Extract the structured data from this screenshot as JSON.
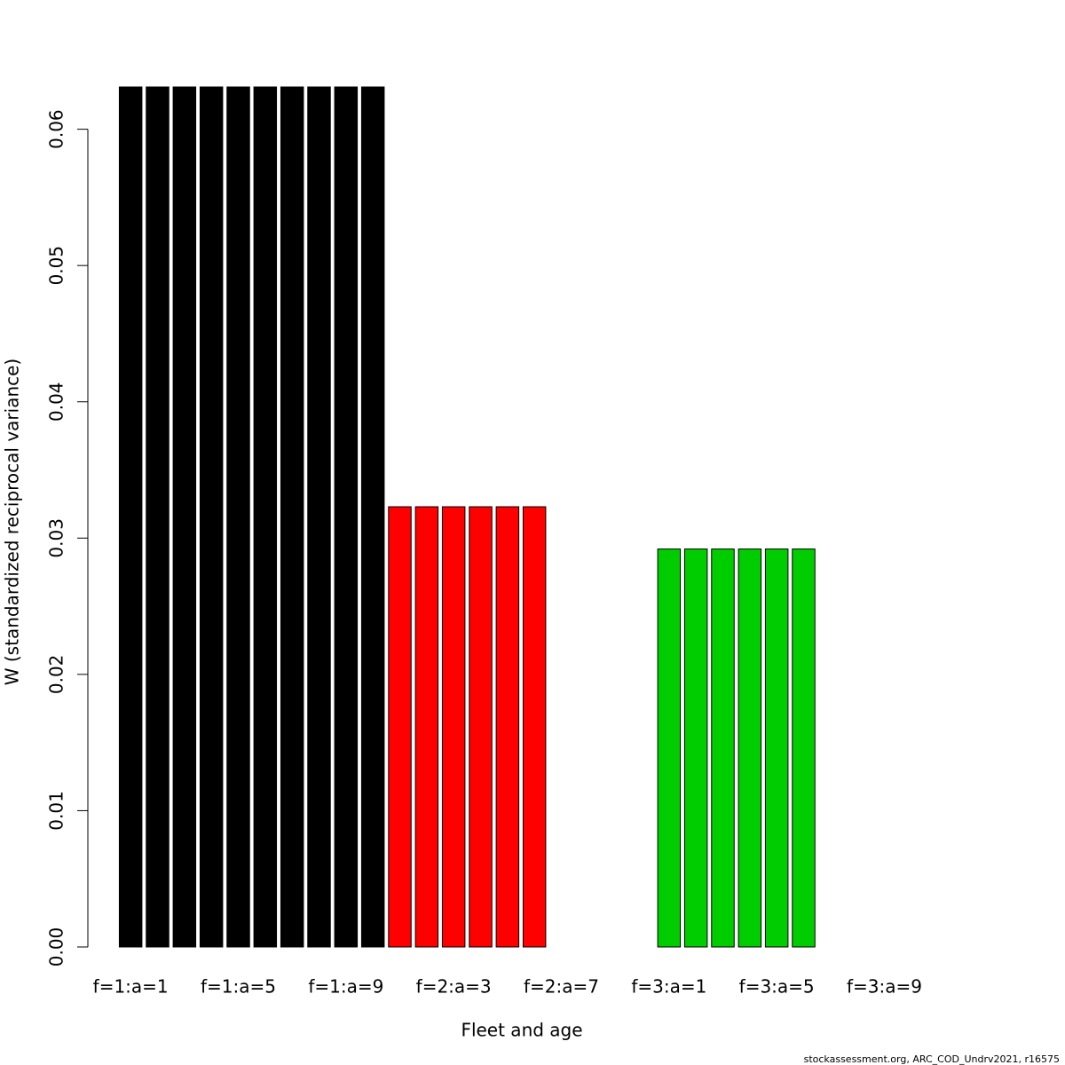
{
  "chart_data": {
    "type": "bar",
    "x_label": "Fleet and age",
    "y_label": "W (standardized reciprocal variance)",
    "footnote": "stockassessment.org, ARC_COD_Undrv2021, r16575",
    "categories": [
      "f=1:a=1",
      null,
      null,
      null,
      "f=1:a=5",
      null,
      null,
      null,
      "f=1:a=9",
      null,
      null,
      null,
      "f=2:a=3",
      null,
      null,
      null,
      "f=2:a=7",
      null,
      null,
      null,
      "f=3:a=1",
      null,
      null,
      null,
      "f=3:a=5",
      null,
      null,
      null,
      "f=3:a=9",
      null
    ],
    "values": [
      0.0631,
      0.0631,
      0.0631,
      0.0631,
      0.0631,
      0.0631,
      0.0631,
      0.0631,
      0.0631,
      0.0631,
      0.0323,
      0.0323,
      0.0323,
      0.0323,
      0.0323,
      0.0323,
      null,
      null,
      null,
      null,
      0.0292,
      0.0292,
      0.0292,
      0.0292,
      0.0292,
      0.0292,
      null,
      null,
      null,
      null
    ],
    "colors": [
      "#000000",
      "#000000",
      "#000000",
      "#000000",
      "#000000",
      "#000000",
      "#000000",
      "#000000",
      "#000000",
      "#000000",
      "#ff0000",
      "#ff0000",
      "#ff0000",
      "#ff0000",
      "#ff0000",
      "#ff0000",
      null,
      null,
      null,
      null,
      "#00cd00",
      "#00cd00",
      "#00cd00",
      "#00cd00",
      "#00cd00",
      "#00cd00",
      null,
      null,
      null,
      null
    ],
    "ylim": [
      0,
      0.0631
    ],
    "yticks": [
      {
        "value": 0,
        "label": "0.00"
      },
      {
        "value": 0.01,
        "label": "0.01"
      },
      {
        "value": 0.02,
        "label": "0.02"
      },
      {
        "value": 0.03,
        "label": "0.03"
      },
      {
        "value": 0.04,
        "label": "0.04"
      },
      {
        "value": 0.05,
        "label": "0.05"
      },
      {
        "value": 0.06,
        "label": "0.06"
      }
    ]
  }
}
